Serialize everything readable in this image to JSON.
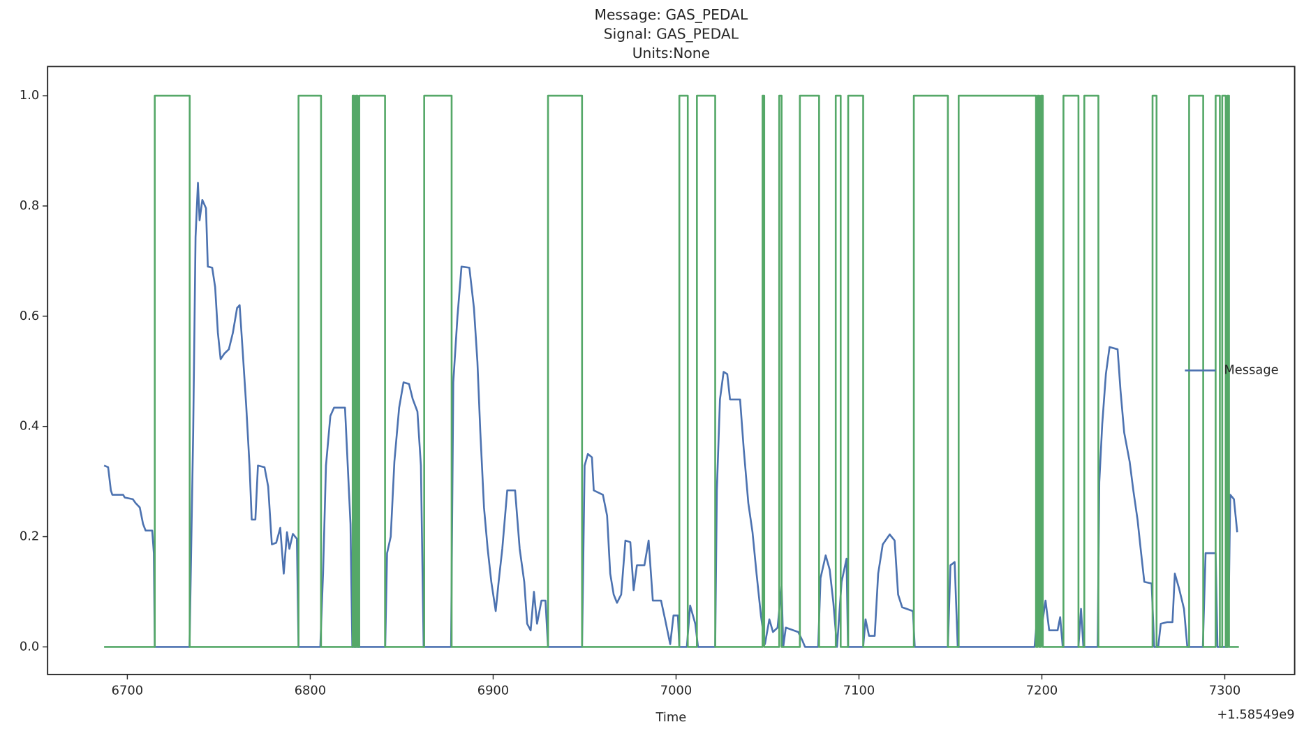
{
  "chart_data": {
    "type": "line",
    "title": [
      "Message: GAS_PEDAL",
      "Signal: GAS_PEDAL",
      "Units:None"
    ],
    "x_label": "Time",
    "x_offset_label": "+1.58549e9",
    "xlim": [
      6656.4,
      7338.2
    ],
    "xticks": [
      6700,
      6800,
      6900,
      7000,
      7100,
      7200,
      7300
    ],
    "ylim": [
      -0.05,
      1.053
    ],
    "yticks": [
      {
        "value": 0,
        "label": "0.0"
      },
      0.2,
      0.4,
      0.6,
      0.8,
      {
        "value": 1,
        "label": "1.0"
      }
    ],
    "legend": "center right",
    "grid": false,
    "series": [
      {
        "name": "Message",
        "color": "#4c72b0",
        "x": [
          6687.3,
          6689.5,
          6691,
          6691.8,
          6697.7,
          6698.6,
          6703,
          6704.5,
          6706.8,
          6708.6,
          6710,
          6713.6,
          6714.5,
          6715,
          6734,
          6736,
          6737.3,
          6738.6,
          6739.5,
          6741,
          6743,
          6744,
          6746.4,
          6748,
          6749.5,
          6751,
          6753,
          6755.5,
          6757.7,
          6760,
          6761.4,
          6763,
          6765,
          6766.8,
          6768,
          6770,
          6771.4,
          6775,
          6777,
          6779,
          6781.4,
          6783.6,
          6785.5,
          6787.3,
          6788.6,
          6790.5,
          6792.7,
          6793.6,
          6805.5,
          6807,
          6808.6,
          6811,
          6813,
          6819,
          6820.5,
          6822,
          6823,
          6841,
          6842,
          6844,
          6846,
          6848.6,
          6851,
          6854,
          6856,
          6858.6,
          6860.5,
          6862,
          6877,
          6878.2,
          6880.5,
          6882.7,
          6887,
          6889.5,
          6891.4,
          6893,
          6895,
          6897,
          6899,
          6901.4,
          6903,
          6905,
          6907.7,
          6912,
          6914.5,
          6917,
          6918.6,
          6920.5,
          6922.3,
          6924,
          6926.4,
          6928.6,
          6930,
          6948.6,
          6950,
          6951.8,
          6954,
          6955,
          6960,
          6962.3,
          6964,
          6965.9,
          6967.7,
          6970,
          6972.3,
          6975,
          6976.8,
          6978.6,
          6982.7,
          6985,
          6987.3,
          6991.8,
          6994,
          6996.8,
          6998.6,
          7001,
          7001.8,
          7005.9,
          7007.7,
          7010.5,
          7012,
          7021.4,
          7022.3,
          7024,
          7026,
          7028,
          7029.5,
          7035,
          7037,
          7039.5,
          7041.8,
          7044,
          7046.4,
          7048.6,
          7051,
          7053,
          7055.5,
          7057.7,
          7058.6,
          7060,
          7066.8,
          7069,
          7070.5,
          7077.7,
          7079,
          7081.8,
          7084,
          7086,
          7088,
          7090.5,
          7093.2,
          7094,
          7102.3,
          7103.6,
          7105.5,
          7108.6,
          7110.5,
          7113,
          7116.8,
          7119.5,
          7121.4,
          7123.6,
          7129.5,
          7130.5,
          7148.6,
          7150,
          7152.3,
          7154,
          7196,
          7197.7,
          7199.5,
          7202,
          7204,
          7208.6,
          7210,
          7211.4,
          7220,
          7221.4,
          7222.7,
          7230.5,
          7231.4,
          7233,
          7235,
          7237,
          7241.4,
          7243,
          7245,
          7248,
          7250,
          7252.3,
          7254,
          7256,
          7260,
          7261.4,
          7263.6,
          7265,
          7268.6,
          7271.4,
          7272.7,
          7275,
          7277.7,
          7279.5,
          7288,
          7289.5,
          7295,
          7296,
          7301.8,
          7303,
          7305,
          7306.8
        ],
        "values": [
          0.329,
          0.326,
          0.284,
          0.276,
          0.276,
          0.271,
          0.268,
          0.261,
          0.253,
          0.223,
          0.211,
          0.211,
          0.17,
          0,
          0,
          0.389,
          0.744,
          0.842,
          0.774,
          0.811,
          0.796,
          0.69,
          0.688,
          0.653,
          0.57,
          0.522,
          0.532,
          0.54,
          0.57,
          0.615,
          0.62,
          0.54,
          0.437,
          0.329,
          0.231,
          0.231,
          0.329,
          0.326,
          0.291,
          0.186,
          0.189,
          0.216,
          0.133,
          0.208,
          0.178,
          0.205,
          0.196,
          0,
          0,
          0.133,
          0.329,
          0.419,
          0.434,
          0.434,
          0.329,
          0.223,
          0,
          0,
          0.17,
          0.2,
          0.336,
          0.434,
          0.48,
          0.477,
          0.45,
          0.427,
          0.329,
          0,
          0,
          0.48,
          0.6,
          0.69,
          0.688,
          0.615,
          0.517,
          0.389,
          0.253,
          0.178,
          0.118,
          0.065,
          0.118,
          0.178,
          0.284,
          0.284,
          0.178,
          0.118,
          0.042,
          0.03,
          0.1,
          0.042,
          0.084,
          0.084,
          0,
          0,
          0.329,
          0.35,
          0.344,
          0.284,
          0.276,
          0.238,
          0.133,
          0.095,
          0.08,
          0.095,
          0.193,
          0.19,
          0.103,
          0.148,
          0.148,
          0.193,
          0.084,
          0.084,
          0.05,
          0.005,
          0.057,
          0.057,
          0,
          0,
          0.075,
          0.042,
          0,
          0,
          0.284,
          0.449,
          0.499,
          0.495,
          0.449,
          0.449,
          0.359,
          0.261,
          0.208,
          0.133,
          0.057,
          0.005,
          0.05,
          0.027,
          0.035,
          0.11,
          0,
          0.035,
          0.027,
          0.012,
          0,
          0,
          0.125,
          0.166,
          0.14,
          0.08,
          0,
          0.118,
          0.16,
          0,
          0,
          0.05,
          0.02,
          0.02,
          0.133,
          0.186,
          0.204,
          0.193,
          0.095,
          0.072,
          0.065,
          0,
          0,
          0.148,
          0.154,
          0,
          0,
          0.065,
          0.027,
          0.084,
          0.03,
          0.03,
          0.054,
          0,
          0,
          0.069,
          0,
          0,
          0.299,
          0.404,
          0.495,
          0.544,
          0.54,
          0.465,
          0.389,
          0.336,
          0.284,
          0.231,
          0.178,
          0.118,
          0.115,
          0,
          0,
          0.042,
          0.045,
          0.045,
          0.133,
          0.106,
          0.069,
          0,
          0,
          0.17,
          0.17,
          0,
          0,
          0.276,
          0.268,
          0.208
        ]
      },
      {
        "color": "#55a868",
        "x": [
          6687.3,
          6715,
          6715,
          6734.1,
          6734.1,
          6793.6,
          6793.6,
          6805.9,
          6805.9,
          6823.2,
          6823.2,
          6824.1,
          6824.1,
          6825,
          6825,
          6825.9,
          6825.9,
          6826.8,
          6826.8,
          6840.9,
          6840.9,
          6862.3,
          6862.3,
          6877.3,
          6877.3,
          6930,
          6930,
          6948.6,
          6948.6,
          7001.8,
          7001.8,
          7006.4,
          7006.4,
          7011.4,
          7011.4,
          7021.4,
          7021.4,
          7047.3,
          7047.3,
          7048.2,
          7048.2,
          7056.4,
          7056.4,
          7057.7,
          7057.7,
          7067.7,
          7067.7,
          7078.2,
          7078.2,
          7087.3,
          7087.3,
          7090,
          7090,
          7094.1,
          7094.1,
          7102.3,
          7102.3,
          7130,
          7130,
          7148.6,
          7148.6,
          7154.5,
          7154.5,
          7196.8,
          7196.8,
          7197.7,
          7197.7,
          7198.6,
          7198.6,
          7199.5,
          7199.5,
          7200.5,
          7200.5,
          7211.8,
          7211.8,
          7220,
          7220,
          7223.2,
          7223.2,
          7230.9,
          7230.9,
          7260.5,
          7260.5,
          7262.7,
          7262.7,
          7280.5,
          7280.5,
          7288.2,
          7288.2,
          7295,
          7295,
          7297.3,
          7297.3,
          7298.6,
          7298.6,
          7300.5,
          7300.5,
          7301.4,
          7301.4,
          7302.3,
          7302.3,
          7307.7
        ],
        "values": [
          0,
          0,
          1,
          1,
          0,
          0,
          1,
          1,
          0,
          0,
          1,
          1,
          0,
          0,
          1,
          1,
          0,
          0,
          1,
          1,
          0,
          0,
          1,
          1,
          0,
          0,
          1,
          1,
          0,
          0,
          1,
          1,
          0,
          0,
          1,
          1,
          0,
          0,
          1,
          1,
          0,
          0,
          1,
          1,
          0,
          0,
          1,
          1,
          0,
          0,
          1,
          1,
          0,
          0,
          1,
          1,
          0,
          0,
          1,
          1,
          0,
          0,
          1,
          1,
          0,
          0,
          1,
          1,
          0,
          0,
          1,
          1,
          0,
          0,
          1,
          1,
          0,
          0,
          1,
          1,
          0,
          0,
          1,
          1,
          0,
          0,
          1,
          1,
          0,
          0,
          1,
          1,
          0,
          0,
          1,
          1,
          0,
          0,
          1,
          1,
          0,
          0
        ]
      }
    ]
  }
}
